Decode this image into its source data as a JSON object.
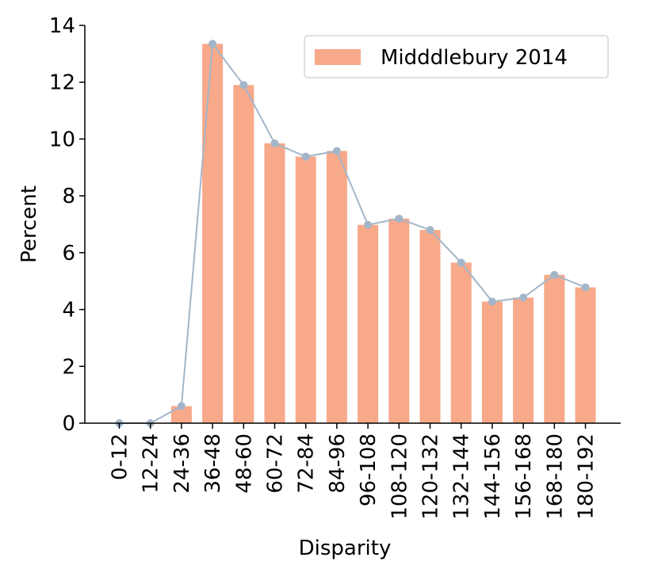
{
  "chart_data": {
    "type": "bar",
    "title": "",
    "xlabel": "Disparity",
    "ylabel": "Percent",
    "ylim": [
      0,
      14
    ],
    "yticks": [
      0,
      2,
      4,
      6,
      8,
      10,
      12,
      14
    ],
    "grid": false,
    "legend_position": "top-right",
    "categories": [
      "0-12",
      "12-24",
      "24-36",
      "36-48",
      "48-60",
      "60-72",
      "72-84",
      "84-96",
      "96-108",
      "108-120",
      "120-132",
      "132-144",
      "144-156",
      "156-168",
      "168-180",
      "180-192"
    ],
    "series": [
      {
        "name": "Midddlebury 2014",
        "type": "bar",
        "color": "#f7a98a",
        "values": [
          0,
          0,
          0.6,
          13.35,
          11.9,
          9.85,
          9.38,
          9.58,
          6.98,
          7.2,
          6.8,
          5.65,
          4.28,
          4.42,
          5.22,
          4.78
        ]
      },
      {
        "type": "line",
        "color": "#a3b6c9",
        "values": [
          0,
          0,
          0.6,
          13.35,
          11.9,
          9.85,
          9.38,
          9.58,
          6.98,
          7.2,
          6.8,
          5.65,
          4.28,
          4.42,
          5.22,
          4.78
        ]
      }
    ]
  }
}
